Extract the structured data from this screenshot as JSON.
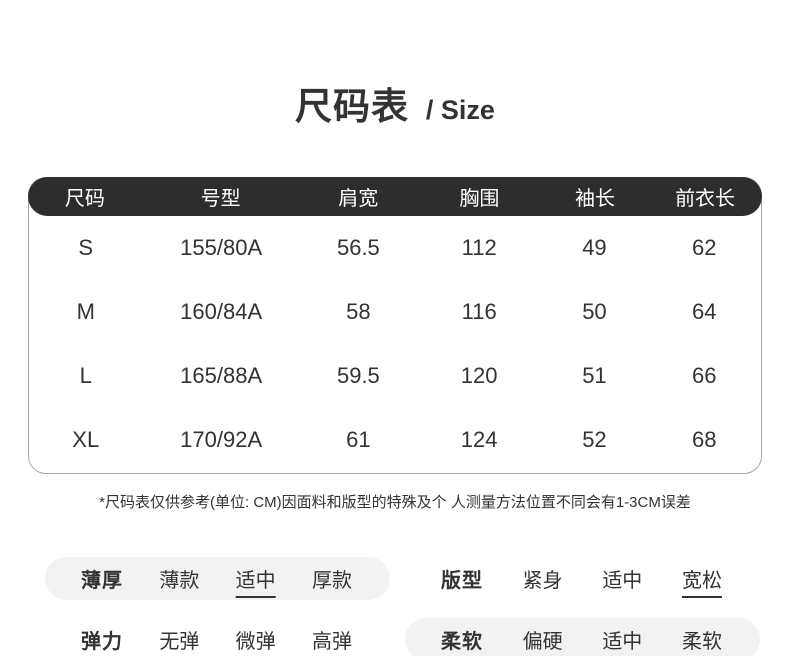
{
  "page": {
    "title_zh": "尺码表",
    "title_en": "/ Size"
  },
  "size_table": {
    "headers": [
      "尺码",
      "号型",
      "肩宽",
      "胸围",
      "袖长",
      "前衣长"
    ],
    "rows": [
      [
        "S",
        "155/80A",
        "56.5",
        "112",
        "49",
        "62"
      ],
      [
        "M",
        "160/84A",
        "58",
        "116",
        "50",
        "64"
      ],
      [
        "L",
        "165/88A",
        "59.5",
        "120",
        "51",
        "66"
      ],
      [
        "XL",
        "170/92A",
        "61",
        "124",
        "52",
        "68"
      ]
    ]
  },
  "footnote": "*尺码表仅供参考(单位: CM)因面料和版型的特殊及个 人测量方法位置不同会有1-3CM误差",
  "attribute_groups": [
    {
      "label": "薄厚",
      "options": [
        "薄款",
        "适中",
        "厚款"
      ],
      "selected_index": 1,
      "highlight_bg": true
    },
    {
      "label": "版型",
      "options": [
        "紧身",
        "适中",
        "宽松"
      ],
      "selected_index": 2,
      "highlight_bg": false
    },
    {
      "label": "弹力",
      "options": [
        "无弹",
        "微弹",
        "高弹"
      ],
      "selected_index": 1,
      "highlight_bg": false
    },
    {
      "label": "柔软",
      "options": [
        "偏硬",
        "适中",
        "柔软"
      ],
      "selected_index": 1,
      "highlight_bg": true
    }
  ],
  "colors": {
    "header_bg": "#2d2d2d",
    "header_text": "#ffffff",
    "body_text": "#333333",
    "table_border": "#a8a8a8",
    "pill_bg": "#f2f2f2"
  }
}
